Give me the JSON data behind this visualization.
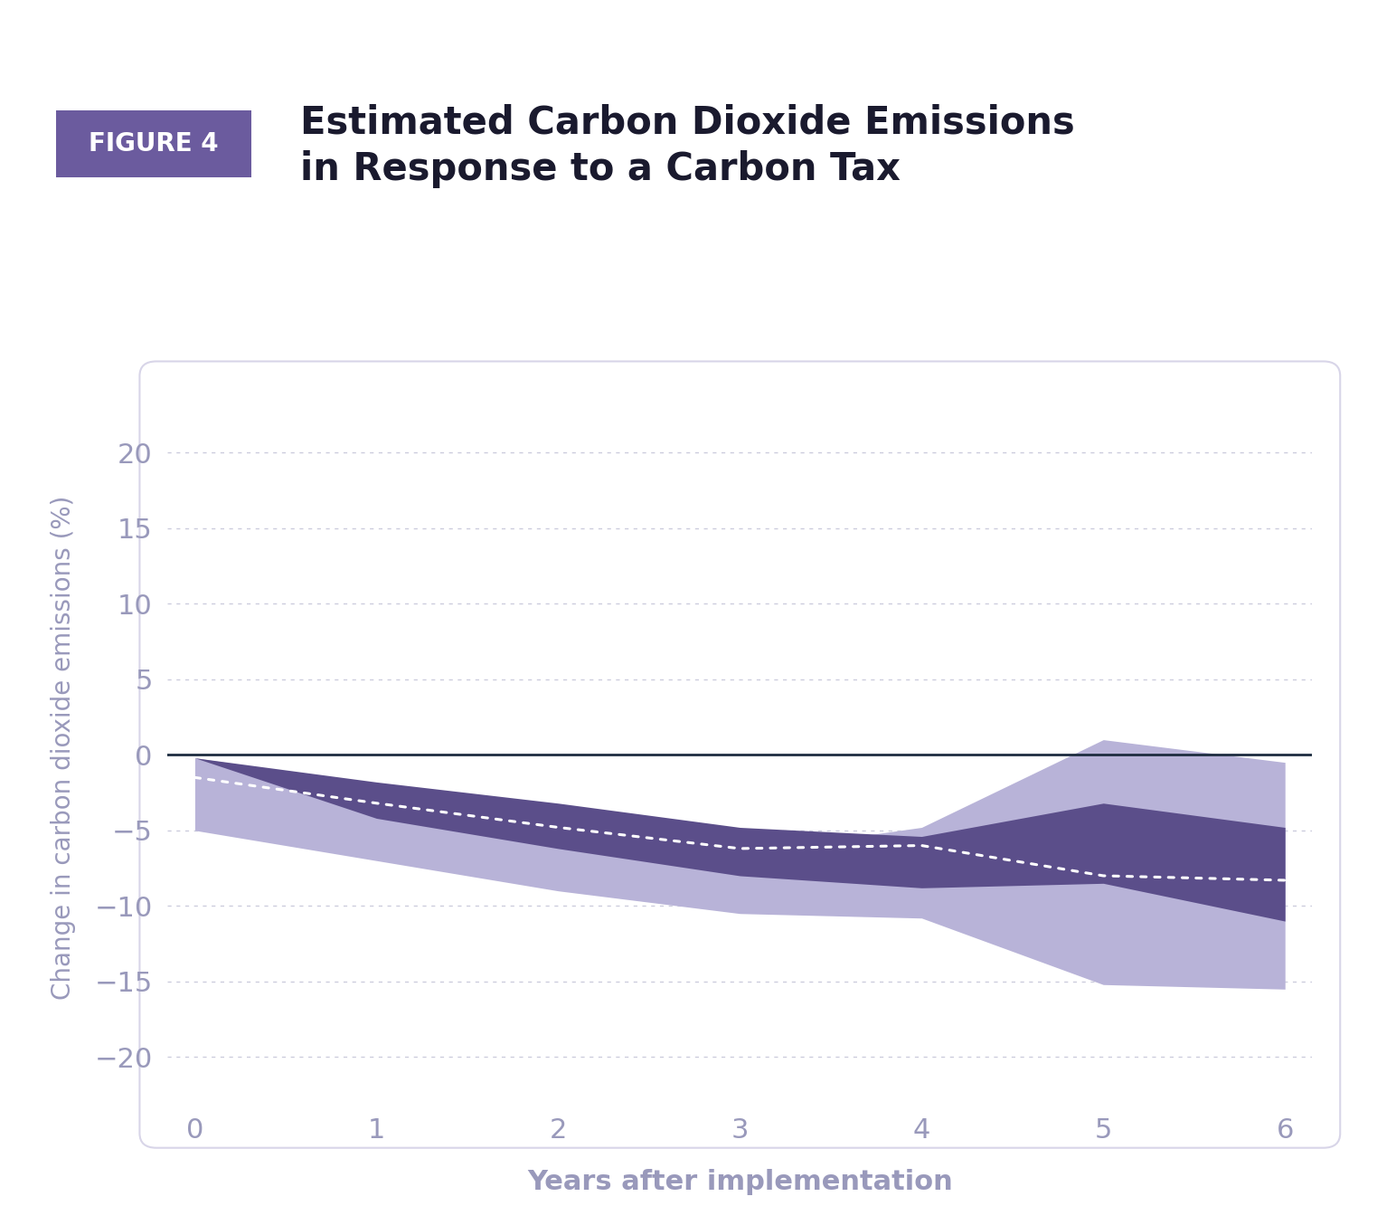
{
  "title_line1": "Estimated Carbon Dioxide Emissions",
  "title_line2": "in Response to a Carbon Tax",
  "figure_label": "FIGURE 4",
  "xlabel": "Years after implementation",
  "ylabel": "Change in carbon dioxide emissions (%)",
  "x": [
    0,
    1,
    2,
    3,
    4,
    5,
    6
  ],
  "dotted_line": [
    -1.5,
    -3.2,
    -4.8,
    -6.2,
    -6.0,
    -8.0,
    -8.3
  ],
  "inner_upper": [
    -0.2,
    -1.8,
    -3.2,
    -4.8,
    -5.4,
    -3.2,
    -4.8
  ],
  "inner_lower": [
    -0.2,
    -4.2,
    -6.2,
    -8.0,
    -8.8,
    -8.5,
    -11.0
  ],
  "outer_upper": [
    -0.2,
    -2.0,
    -4.0,
    -6.5,
    -4.8,
    1.0,
    -0.5
  ],
  "outer_lower": [
    -5.0,
    -7.0,
    -9.0,
    -10.5,
    -10.8,
    -15.2,
    -15.5
  ],
  "zero_line_color": "#1e2d40",
  "inner_band_color": "#5b4e8a",
  "outer_band_color": "#b8b3d8",
  "dotted_line_color": "#ffffff",
  "background_color": "#ffffff",
  "panel_background": "#ffffff",
  "panel_border_color": "#d8d5e8",
  "figure_label_bg": "#6b5b9e",
  "figure_label_text": "#ffffff",
  "title_color": "#1a1a2e",
  "axis_label_color": "#9999bb",
  "tick_label_color": "#9999bb",
  "gridline_color": "#ccccdd",
  "ylim": [
    -23,
    24
  ],
  "yticks": [
    -20,
    -15,
    -10,
    -5,
    0,
    5,
    10,
    15,
    20
  ],
  "xticks": [
    0,
    1,
    2,
    3,
    4,
    5,
    6
  ]
}
